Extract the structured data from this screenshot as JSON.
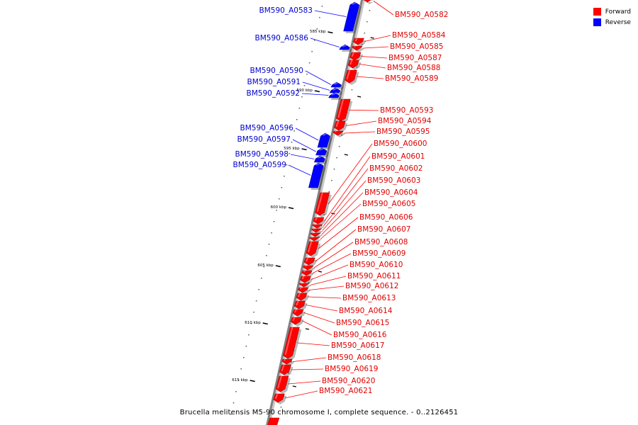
{
  "legend": [
    {
      "label": "Forward",
      "color": "#ff0000"
    },
    {
      "label": "Reverse",
      "color": "#0000ff"
    }
  ],
  "caption": "Brucella melitensis M5-90 chromosome I, complete sequence. - 0..2126451",
  "colors": {
    "forward": "#ff0000",
    "reverse": "#0000ff",
    "backbone": "#808080"
  },
  "kbp_ticks": [
    "585 kbp",
    "590 kbp",
    "595 kbp",
    "600 kbp",
    "605 kbp",
    "610 kbp",
    "615 kbp"
  ],
  "genes": [
    {
      "name": "BM590_A0582",
      "strand": "forward"
    },
    {
      "name": "BM590_A0583",
      "strand": "reverse"
    },
    {
      "name": "BM590_A0584",
      "strand": "forward"
    },
    {
      "name": "BM590_A0585",
      "strand": "forward"
    },
    {
      "name": "BM590_A0586",
      "strand": "reverse"
    },
    {
      "name": "BM590_A0587",
      "strand": "forward"
    },
    {
      "name": "BM590_A0588",
      "strand": "forward"
    },
    {
      "name": "BM590_A0589",
      "strand": "forward"
    },
    {
      "name": "BM590_A0590",
      "strand": "reverse"
    },
    {
      "name": "BM590_A0591",
      "strand": "reverse"
    },
    {
      "name": "BM590_A0592",
      "strand": "reverse"
    },
    {
      "name": "BM590_A0593",
      "strand": "forward"
    },
    {
      "name": "BM590_A0594",
      "strand": "forward"
    },
    {
      "name": "BM590_A0595",
      "strand": "forward"
    },
    {
      "name": "BM590_A0596",
      "strand": "reverse"
    },
    {
      "name": "BM590_A0597",
      "strand": "reverse"
    },
    {
      "name": "BM590_A0598",
      "strand": "reverse"
    },
    {
      "name": "BM590_A0599",
      "strand": "reverse"
    },
    {
      "name": "BM590_A0600",
      "strand": "forward"
    },
    {
      "name": "BM590_A0601",
      "strand": "forward"
    },
    {
      "name": "BM590_A0602",
      "strand": "forward"
    },
    {
      "name": "BM590_A0603",
      "strand": "forward"
    },
    {
      "name": "BM590_A0604",
      "strand": "forward"
    },
    {
      "name": "BM590_A0605",
      "strand": "forward"
    },
    {
      "name": "BM590_A0606",
      "strand": "forward"
    },
    {
      "name": "BM590_A0607",
      "strand": "forward"
    },
    {
      "name": "BM590_A0608",
      "strand": "forward"
    },
    {
      "name": "BM590_A0609",
      "strand": "forward"
    },
    {
      "name": "BM590_A0610",
      "strand": "forward"
    },
    {
      "name": "BM590_A0611",
      "strand": "forward"
    },
    {
      "name": "BM590_A0612",
      "strand": "forward"
    },
    {
      "name": "BM590_A0613",
      "strand": "forward"
    },
    {
      "name": "BM590_A0614",
      "strand": "forward"
    },
    {
      "name": "BM590_A0615",
      "strand": "forward"
    },
    {
      "name": "BM590_A0616",
      "strand": "forward"
    },
    {
      "name": "BM590_A0617",
      "strand": "forward"
    },
    {
      "name": "BM590_A0618",
      "strand": "forward"
    },
    {
      "name": "BM590_A0619",
      "strand": "forward"
    },
    {
      "name": "BM590_A0620",
      "strand": "forward"
    },
    {
      "name": "BM590_A0621",
      "strand": "forward"
    }
  ]
}
